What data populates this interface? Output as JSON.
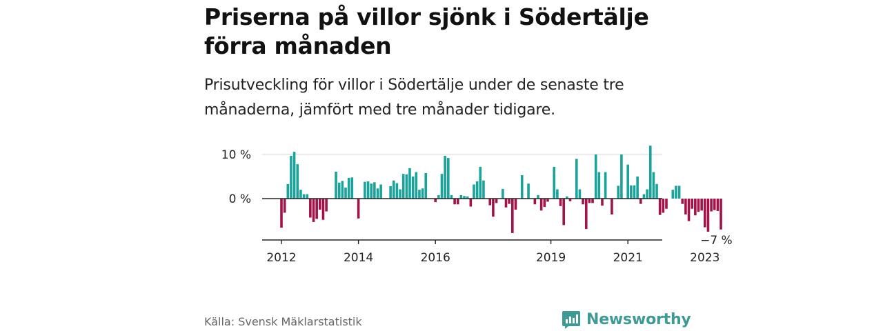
{
  "title": "Priserna på villor sjönk i Södertälje förra månaden",
  "subtitle": "Prisutveckling för villor i Södertälje under de senaste tre månaderna, jämfört med tre månader tidigare.",
  "source": "Källa: Svensk Mäklarstatistik",
  "brand": {
    "name": "Newsworthy",
    "logo_icon": "newsworthy-chart-bubble-icon",
    "color": "#3f9a95"
  },
  "colors": {
    "positive": "#1aa39a",
    "negative": "#a3134a",
    "grid": "#dddddd",
    "axis": "#222222"
  },
  "chart_data": {
    "type": "bar",
    "title": "",
    "xlabel": "",
    "ylabel": "",
    "ylim": [
      -9.8,
      14
    ],
    "yticks": [
      {
        "value": 10,
        "label": "10 %"
      },
      {
        "value": 0,
        "label": "0 %"
      }
    ],
    "xticks": [
      {
        "index": 0,
        "label": "2012"
      },
      {
        "index": 24,
        "label": "2014"
      },
      {
        "index": 48,
        "label": "2016"
      },
      {
        "index": 84,
        "label": "2019"
      },
      {
        "index": 108,
        "label": "2021"
      },
      {
        "index": 132,
        "label": "2023"
      }
    ],
    "end_label": {
      "index": 136,
      "value": -7,
      "label": "−7 %"
    },
    "values": [
      -6.6,
      -3.2,
      3.3,
      9.7,
      10.6,
      7.8,
      2.0,
      1.0,
      1.0,
      -4.3,
      -5.3,
      -4.6,
      -2.5,
      -4.8,
      -2.9,
      0,
      0,
      6.1,
      3.6,
      4.0,
      2.5,
      4.7,
      4.8,
      0,
      -4.5,
      0,
      3.8,
      3.9,
      3.4,
      3.7,
      2.3,
      3.2,
      0,
      0,
      2.8,
      4.1,
      3.5,
      2.1,
      5.6,
      5.5,
      6.9,
      5.0,
      6.0,
      2.0,
      2.3,
      5.8,
      0,
      0,
      -0.8,
      0.8,
      5.6,
      9.7,
      9.2,
      0.8,
      -1.3,
      -1.3,
      0.8,
      0.6,
      0.5,
      -1.8,
      3.2,
      3.9,
      7.2,
      4.1,
      0,
      -1.5,
      -4.1,
      -1.0,
      0,
      2.2,
      -2.0,
      -1.2,
      -7.8,
      -2.5,
      0,
      5.3,
      0,
      3.4,
      0,
      -1.3,
      0.8,
      -2.7,
      -1.9,
      -0.7,
      0,
      7.2,
      2.1,
      -1.7,
      -6.0,
      0.5,
      -0.6,
      0,
      9.0,
      2.1,
      -1.3,
      -6.9,
      -1.0,
      -1.0,
      10.0,
      6.0,
      -1.6,
      6.0,
      0,
      -3.6,
      0,
      2.9,
      10.0,
      0,
      7.7,
      3.0,
      3.0,
      5.0,
      -1.2,
      1.0,
      2.1,
      12.0,
      6.0,
      3.3,
      -3.7,
      -3.2,
      -2.3,
      0,
      2.0,
      2.9,
      2.9,
      -1.2,
      -3.6,
      -5.1,
      -2.3,
      -3.8,
      -3.0,
      -2.7,
      -6.5,
      -7.5,
      -2.9,
      -2.6,
      -2.8,
      -7.0
    ]
  }
}
